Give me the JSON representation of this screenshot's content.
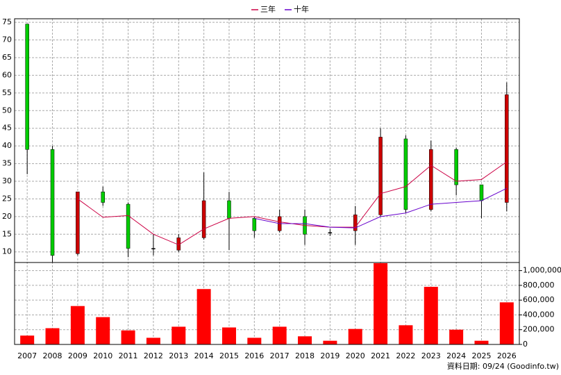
{
  "chart_data": {
    "type": "candlestick",
    "categories": [
      "2007",
      "2008",
      "2009",
      "2010",
      "2011",
      "2012",
      "2013",
      "2014",
      "2015",
      "2016",
      "2017",
      "2018",
      "2019",
      "2020",
      "2021",
      "2022",
      "2023",
      "2024",
      "2025",
      "2026"
    ],
    "open": [
      74.5,
      39,
      9.5,
      27,
      23.5,
      11,
      10.5,
      14,
      24.5,
      19.5,
      16,
      20,
      15.5,
      16,
      20.5,
      42,
      22,
      39,
      29,
      24
    ],
    "high": [
      74.5,
      40,
      27,
      28.5,
      24,
      15,
      15,
      32.5,
      27,
      20,
      22,
      22,
      16.5,
      23,
      45,
      43,
      41.5,
      39.5,
      29,
      58
    ],
    "low": [
      32,
      7,
      9,
      23,
      8.5,
      9,
      10,
      13.5,
      10.5,
      14,
      15.5,
      12,
      14.5,
      12,
      20,
      21,
      21.5,
      26,
      19.5,
      21.5
    ],
    "close": [
      39,
      9,
      27,
      24,
      11,
      11,
      14,
      24.5,
      19.5,
      16,
      20,
      15,
      15.5,
      20.5,
      42.5,
      22,
      39,
      29,
      24.5,
      54.5
    ],
    "up_color": "#cc0000",
    "down_color": "#00cc00",
    "flat_color": "#000000",
    "series": [
      {
        "name": "三年",
        "color": "#cc0044",
        "values": [
          null,
          null,
          25,
          19.8,
          20.3,
          15,
          12,
          16.5,
          19.5,
          20,
          18.5,
          17.5,
          17,
          17,
          26.5,
          28.5,
          34.5,
          30,
          30.5,
          35.5
        ]
      },
      {
        "name": "十年",
        "color": "#6600cc",
        "values": [
          null,
          null,
          null,
          null,
          null,
          null,
          null,
          null,
          null,
          19.5,
          18,
          18,
          17,
          16.8,
          20,
          21,
          23.5,
          24,
          24.5,
          28
        ]
      }
    ],
    "ylim": [
      7,
      76
    ],
    "yticks": [
      10,
      15,
      20,
      25,
      30,
      35,
      40,
      45,
      50,
      55,
      60,
      65,
      70,
      75
    ],
    "grid": true,
    "volume": {
      "color": "#ff0000",
      "values": [
        120000,
        220000,
        520000,
        370000,
        190000,
        90000,
        240000,
        750000,
        230000,
        90000,
        240000,
        110000,
        50000,
        210000,
        1100000,
        260000,
        780000,
        200000,
        50000,
        570000
      ],
      "ylim": [
        0,
        1100000
      ],
      "yticks": [
        0,
        {
          "value": 200000,
          "label": "200,000"
        },
        {
          "value": 400000,
          "label": "400,000"
        },
        {
          "value": 600000,
          "label": "600,000"
        },
        {
          "value": 800000,
          "label": "800,000"
        },
        {
          "value": 1000000,
          "label": "1,000,000"
        }
      ]
    },
    "note": "資料日期: 09/24 (Goodinfo.tw)"
  }
}
